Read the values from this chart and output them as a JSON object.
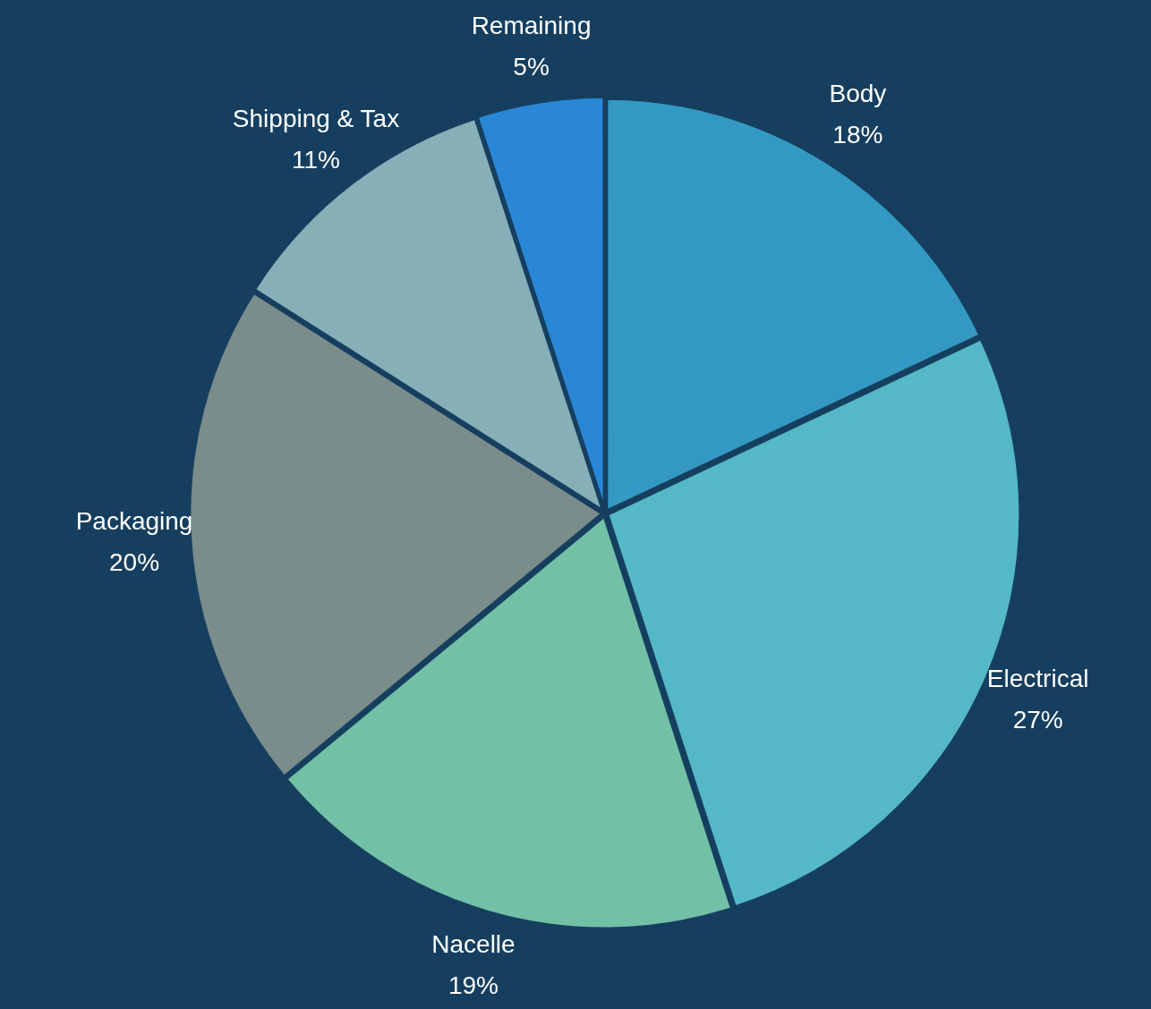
{
  "chart_data": {
    "type": "pie",
    "categories": [
      "Body",
      "Electrical",
      "Nacelle",
      "Packaging",
      "Shipping & Tax",
      "Remaining"
    ],
    "values": [
      18,
      27,
      19,
      20,
      11,
      5
    ],
    "value_labels": [
      "18%",
      "27%",
      "19%",
      "20%",
      "11%",
      "5%"
    ],
    "colors": [
      "#3399c2",
      "#55b8c6",
      "#72c1a6",
      "#7a8d8b",
      "#86afb8",
      "#2a87d6"
    ],
    "legend": false
  }
}
